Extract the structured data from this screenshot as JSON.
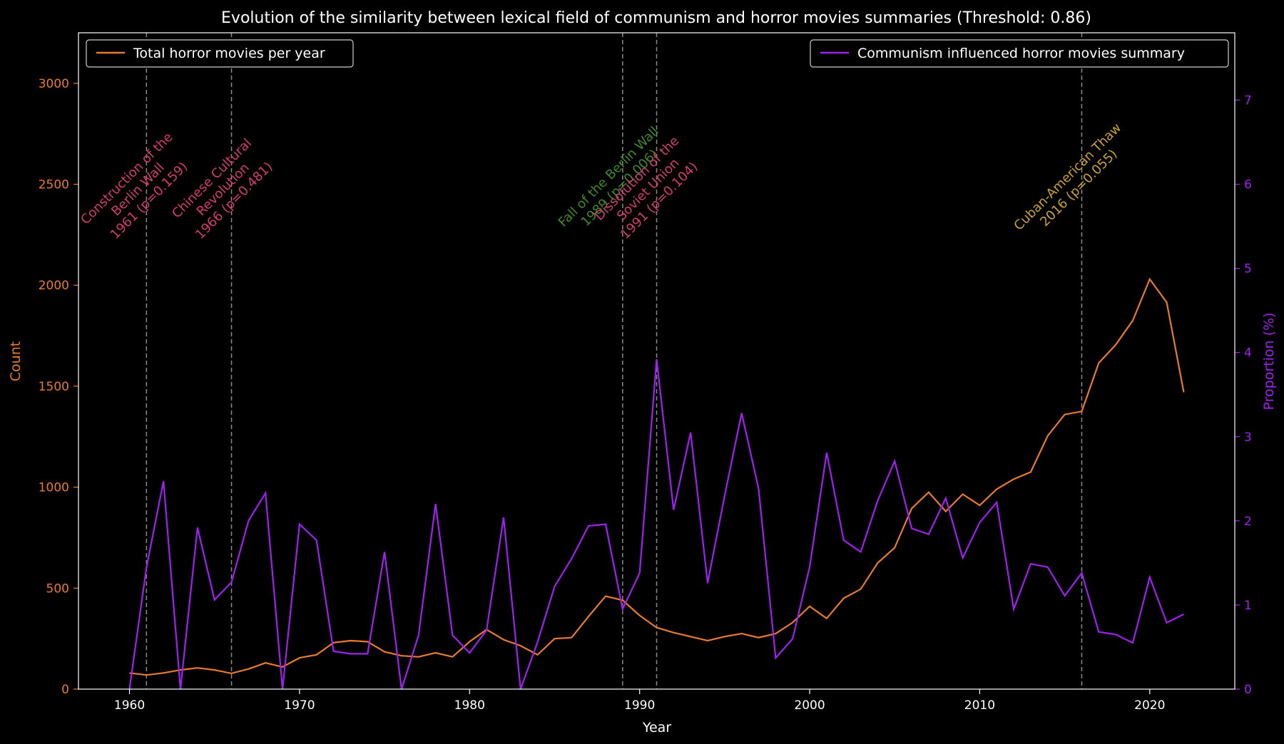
{
  "chart_data": {
    "type": "line",
    "title": "Evolution of the similarity between lexical field of communism and horror movies summaries (Threshold: 0.86)",
    "xlabel": "Year",
    "ylabel_left": "Count",
    "ylabel_right": "Proportion (%)",
    "xlim": [
      1957,
      2025
    ],
    "ylim_left": [
      0,
      3250
    ],
    "ylim_right": [
      0,
      7.8
    ],
    "xticks": [
      1960,
      1970,
      1980,
      1990,
      2000,
      2010,
      2020
    ],
    "yticks_left": [
      0,
      500,
      1000,
      1500,
      2000,
      2500,
      3000
    ],
    "yticks_right": [
      0,
      1,
      2,
      3,
      4,
      5,
      6,
      7
    ],
    "grid": false,
    "x": [
      1960,
      1961,
      1962,
      1963,
      1964,
      1965,
      1966,
      1967,
      1968,
      1969,
      1970,
      1971,
      1972,
      1973,
      1974,
      1975,
      1976,
      1977,
      1978,
      1979,
      1980,
      1981,
      1982,
      1983,
      1984,
      1985,
      1986,
      1987,
      1988,
      1989,
      1990,
      1991,
      1992,
      1993,
      1994,
      1995,
      1996,
      1997,
      1998,
      1999,
      2000,
      2001,
      2002,
      2003,
      2004,
      2005,
      2006,
      2007,
      2008,
      2009,
      2010,
      2011,
      2012,
      2013,
      2014,
      2015,
      2016,
      2017,
      2018,
      2019,
      2020,
      2021,
      2022
    ],
    "series": [
      {
        "name": "Total horror movies per year",
        "axis": "left",
        "color": "#e87a2e",
        "values": [
          80,
          70,
          80,
          95,
          105,
          95,
          78,
          100,
          130,
          110,
          155,
          170,
          230,
          240,
          235,
          185,
          165,
          160,
          180,
          160,
          235,
          295,
          245,
          215,
          170,
          250,
          255,
          360,
          460,
          440,
          365,
          305,
          280,
          260,
          240,
          260,
          275,
          255,
          275,
          330,
          410,
          350,
          450,
          495,
          625,
          700,
          895,
          975,
          880,
          965,
          910,
          990,
          1040,
          1075,
          1255,
          1360,
          1375,
          1615,
          1705,
          1825,
          2030,
          1915,
          1470
        ]
      },
      {
        "name": "Communism influenced horror movies summary",
        "axis": "right",
        "color": "#a020f0",
        "values": [
          0,
          1.45,
          2.47,
          0,
          1.92,
          1.06,
          1.27,
          2.0,
          2.33,
          0,
          1.96,
          1.77,
          0.45,
          0.42,
          0.42,
          1.63,
          0,
          0.64,
          2.2,
          0.64,
          0.43,
          0.7,
          2.04,
          0,
          0.56,
          1.22,
          1.55,
          1.94,
          1.96,
          0.95,
          1.38,
          3.92,
          2.13,
          3.05,
          1.26,
          2.3,
          3.28,
          2.38,
          0.37,
          0.6,
          1.45,
          2.81,
          1.77,
          1.63,
          2.24,
          2.71,
          1.91,
          1.84,
          2.27,
          1.56,
          1.98,
          2.22,
          0.95,
          1.49,
          1.45,
          1.11,
          1.38,
          0.68,
          0.65,
          0.55,
          1.33,
          0.79,
          0.89
        ]
      }
    ],
    "legend": {
      "left_position": "upper-left",
      "right_position": "upper-right"
    },
    "events": [
      {
        "year": 1961,
        "lines": [
          "Construction of the",
          "Berlin Wall",
          "1961 (p=0.159)"
        ],
        "color": "#d63b72"
      },
      {
        "year": 1966,
        "lines": [
          "Chinese Cultural",
          "Revolution",
          "1966 (p=0.481)"
        ],
        "color": "#d63b72"
      },
      {
        "year": 1989,
        "lines": [
          "Fall of the Berlin Wall",
          "1989 (p=0.006)"
        ],
        "color": "#3f8a2a"
      },
      {
        "year": 1991,
        "lines": [
          "Dissolution of the",
          "Soviet Union",
          "1991 (p=0.104)"
        ],
        "color": "#d63b72"
      },
      {
        "year": 2016,
        "lines": [
          "Cuban-American Thaw",
          "2016 (p=0.055)"
        ],
        "color": "#c9a230"
      }
    ],
    "colors": {
      "background": "#000000",
      "axis": "#ffffff",
      "left_axis": "#e87a2e",
      "right_axis": "#a020f0",
      "event_line": "#8a8a8a"
    }
  }
}
